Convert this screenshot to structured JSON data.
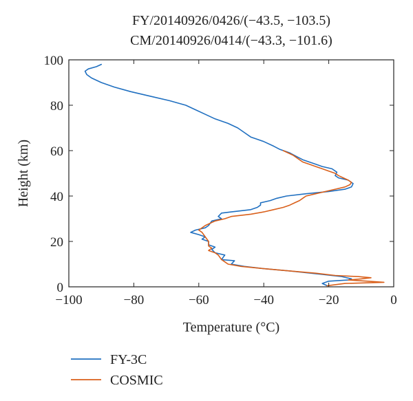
{
  "chart_data": {
    "type": "line",
    "title_lines": [
      "FY/20140926/0426/(−43.5, −103.5)",
      "CM/20140926/0414/(−43.3, −101.6)"
    ],
    "xlabel": "Temperature (°C)",
    "ylabel": "Height (km)",
    "xlim": [
      -100,
      0
    ],
    "ylim": [
      0,
      100
    ],
    "xticks": [
      -100,
      -80,
      -60,
      -40,
      -20,
      0
    ],
    "xtick_labels": [
      "−100",
      "−80",
      "−60",
      "−40",
      "−20",
      "0"
    ],
    "yticks": [
      0,
      20,
      40,
      60,
      80,
      100
    ],
    "ytick_labels": [
      "0",
      "20",
      "40",
      "60",
      "80",
      "100"
    ],
    "grid": false,
    "legend_position": "below",
    "series": [
      {
        "name": "FY-3C",
        "color": "#1f6fc0",
        "points": [
          [
            -20.5,
            0.5
          ],
          [
            -22,
            1.5
          ],
          [
            -20,
            2.5
          ],
          [
            -14,
            3
          ],
          [
            -13,
            3.5
          ],
          [
            -16,
            4.5
          ],
          [
            -22,
            5.5
          ],
          [
            -32,
            7
          ],
          [
            -40,
            8
          ],
          [
            -46,
            9
          ],
          [
            -50,
            10
          ],
          [
            -49,
            11.5
          ],
          [
            -53,
            12
          ],
          [
            -52,
            14
          ],
          [
            -55,
            15
          ],
          [
            -56,
            16.5
          ],
          [
            -55,
            17.5
          ],
          [
            -57,
            18.5
          ],
          [
            -57,
            20
          ],
          [
            -59,
            21
          ],
          [
            -58,
            22
          ],
          [
            -60,
            23
          ],
          [
            -62.5,
            24
          ],
          [
            -61,
            25
          ],
          [
            -58,
            26
          ],
          [
            -57,
            27
          ],
          [
            -56,
            29
          ],
          [
            -53,
            30
          ],
          [
            -54,
            31
          ],
          [
            -53,
            32.5
          ],
          [
            -50,
            33
          ],
          [
            -47,
            33.5
          ],
          [
            -44,
            34
          ],
          [
            -42,
            35
          ],
          [
            -41,
            36
          ],
          [
            -41,
            37
          ],
          [
            -38,
            38
          ],
          [
            -36,
            39
          ],
          [
            -33,
            40
          ],
          [
            -27,
            41
          ],
          [
            -20,
            42
          ],
          [
            -15,
            43
          ],
          [
            -13,
            44
          ],
          [
            -12.5,
            45.5
          ],
          [
            -14,
            47
          ],
          [
            -17,
            48
          ],
          [
            -18,
            49
          ],
          [
            -17.5,
            50.5
          ],
          [
            -19,
            52
          ],
          [
            -22,
            53
          ],
          [
            -24,
            54
          ],
          [
            -28,
            56
          ],
          [
            -30,
            57.5
          ],
          [
            -32,
            59
          ],
          [
            -35,
            60.5
          ],
          [
            -37,
            62
          ],
          [
            -40,
            64
          ],
          [
            -42,
            65
          ],
          [
            -44,
            66
          ],
          [
            -46,
            68
          ],
          [
            -48,
            70
          ],
          [
            -51,
            72
          ],
          [
            -55,
            74
          ],
          [
            -58,
            76
          ],
          [
            -61,
            78
          ],
          [
            -64,
            80
          ],
          [
            -69,
            82
          ],
          [
            -75,
            84
          ],
          [
            -81,
            86
          ],
          [
            -86,
            88
          ],
          [
            -90,
            90
          ],
          [
            -93,
            92
          ],
          [
            -94.5,
            93.5
          ],
          [
            -95,
            95
          ],
          [
            -94,
            96
          ],
          [
            -91.5,
            97
          ],
          [
            -90,
            98
          ]
        ]
      },
      {
        "name": "COSMIC",
        "color": "#d95f1a",
        "points": [
          [
            -20.5,
            0.5
          ],
          [
            -15,
            1.5
          ],
          [
            -3,
            2
          ],
          [
            -8,
            2.5
          ],
          [
            -14,
            3
          ],
          [
            -10,
            3.5
          ],
          [
            -7,
            4
          ],
          [
            -11,
            4.5
          ],
          [
            -18,
            5
          ],
          [
            -24,
            6
          ],
          [
            -32,
            7
          ],
          [
            -40,
            8
          ],
          [
            -47,
            9
          ],
          [
            -51,
            10
          ],
          [
            -52,
            11
          ],
          [
            -53,
            12
          ],
          [
            -54,
            14
          ],
          [
            -55,
            15
          ],
          [
            -57,
            16
          ],
          [
            -56,
            17
          ],
          [
            -57,
            18
          ],
          [
            -57,
            20
          ],
          [
            -58,
            22
          ],
          [
            -59,
            24
          ],
          [
            -60,
            25
          ],
          [
            -58,
            27
          ],
          [
            -55,
            29
          ],
          [
            -52,
            30
          ],
          [
            -50,
            31
          ],
          [
            -44,
            32
          ],
          [
            -40,
            33
          ],
          [
            -37,
            34
          ],
          [
            -34,
            35
          ],
          [
            -32,
            36
          ],
          [
            -30.5,
            37
          ],
          [
            -29,
            38
          ],
          [
            -28,
            39
          ],
          [
            -27,
            40
          ],
          [
            -24,
            41
          ],
          [
            -21,
            42
          ],
          [
            -18,
            43
          ],
          [
            -15,
            44
          ],
          [
            -13.5,
            45
          ],
          [
            -13,
            46
          ],
          [
            -14,
            47
          ],
          [
            -15.5,
            48
          ],
          [
            -17,
            49
          ],
          [
            -18,
            50
          ],
          [
            -20,
            51
          ],
          [
            -22,
            52
          ],
          [
            -24,
            53
          ],
          [
            -26,
            54
          ],
          [
            -28,
            55
          ],
          [
            -29,
            56
          ],
          [
            -31,
            58
          ],
          [
            -34,
            60
          ]
        ]
      }
    ]
  }
}
